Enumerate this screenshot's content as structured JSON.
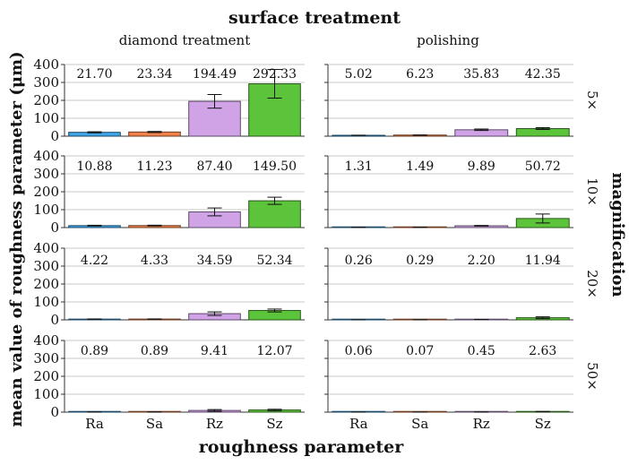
{
  "chart_data": {
    "type": "bar",
    "title": "surface treatment",
    "xlabel": "roughness parameter",
    "ylabel": "mean value of roughness parameter (μm)",
    "row_axis_label": "magnification",
    "column_labels": [
      "diamond treatment",
      "polishing"
    ],
    "row_labels": [
      "5×",
      "10×",
      "20×",
      "50×"
    ],
    "categories": [
      "Ra",
      "Sa",
      "Rz",
      "Sz"
    ],
    "ylim": [
      0,
      400
    ],
    "yticks": [
      "0",
      "100",
      "200",
      "300",
      "400"
    ],
    "grid": true,
    "colors": [
      "#3ea4e6",
      "#f0824a",
      "#cfa3e6",
      "#5cc43a"
    ],
    "panels": [
      {
        "column": "diamond treatment",
        "row": "5×",
        "values": [
          21.7,
          23.34,
          194.49,
          292.33
        ],
        "labels": [
          "21.70",
          "23.34",
          "194.49",
          "292.33"
        ],
        "errors": [
          3,
          3,
          38,
          80
        ]
      },
      {
        "column": "polishing",
        "row": "5×",
        "values": [
          5.02,
          6.23,
          35.83,
          42.35
        ],
        "labels": [
          "5.02",
          "6.23",
          "35.83",
          "42.35"
        ],
        "errors": [
          0.5,
          0.5,
          4,
          5
        ]
      },
      {
        "column": "diamond treatment",
        "row": "10×",
        "values": [
          10.88,
          11.23,
          87.4,
          149.5
        ],
        "labels": [
          "10.88",
          "11.23",
          "87.40",
          "149.50"
        ],
        "errors": [
          2,
          2,
          22,
          20
        ]
      },
      {
        "column": "polishing",
        "row": "10×",
        "values": [
          1.31,
          1.49,
          9.89,
          50.72
        ],
        "labels": [
          "1.31",
          "1.49",
          "9.89",
          "50.72"
        ],
        "errors": [
          0.3,
          0.3,
          2,
          25
        ]
      },
      {
        "column": "diamond treatment",
        "row": "20×",
        "values": [
          4.22,
          4.33,
          34.59,
          52.34
        ],
        "labels": [
          "4.22",
          "4.33",
          "34.59",
          "52.34"
        ],
        "errors": [
          1,
          1,
          10,
          8
        ]
      },
      {
        "column": "polishing",
        "row": "20×",
        "values": [
          0.26,
          0.29,
          2.2,
          11.94
        ],
        "labels": [
          "0.26",
          "0.29",
          "2.20",
          "11.94"
        ],
        "errors": [
          0.05,
          0.05,
          0.5,
          5
        ]
      },
      {
        "column": "diamond treatment",
        "row": "50×",
        "values": [
          0.89,
          0.89,
          9.41,
          12.07
        ],
        "labels": [
          "0.89",
          "0.89",
          "9.41",
          "12.07"
        ],
        "errors": [
          0.2,
          0.2,
          5,
          4
        ]
      },
      {
        "column": "polishing",
        "row": "50×",
        "values": [
          0.06,
          0.07,
          0.45,
          2.63
        ],
        "labels": [
          "0.06",
          "0.07",
          "0.45",
          "2.63"
        ],
        "errors": [
          0.01,
          0.01,
          0.1,
          1
        ]
      }
    ]
  }
}
